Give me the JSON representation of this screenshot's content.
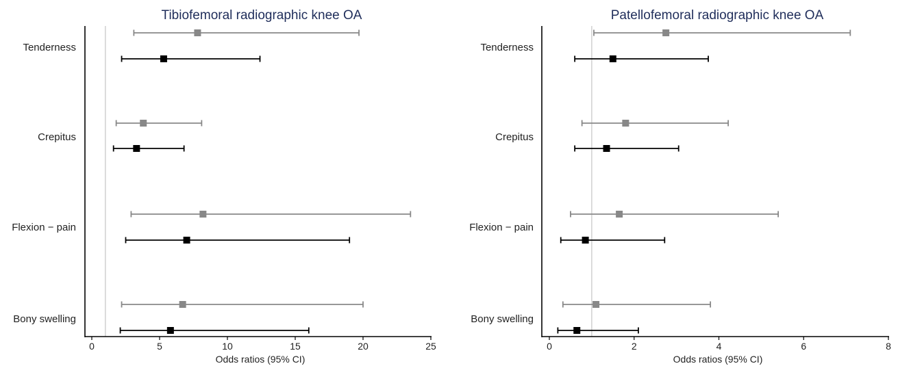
{
  "chart_data": [
    {
      "type": "forest",
      "title": "Tibiofemoral radiographic knee OA",
      "xlabel": "Odds ratios (95% CI)",
      "xlim": [
        0,
        25
      ],
      "xticks": [
        0,
        5,
        10,
        15,
        20,
        25
      ],
      "reference_line": 1,
      "categories": [
        "Tenderness",
        "Crepitus",
        "Flexion − pain",
        "Bony swelling"
      ],
      "series": [
        {
          "color": "#888888",
          "points": [
            {
              "or": 7.8,
              "lower": 3.1,
              "upper": 19.7
            },
            {
              "or": 3.8,
              "lower": 1.8,
              "upper": 8.1
            },
            {
              "or": 8.2,
              "lower": 2.9,
              "upper": 23.5
            },
            {
              "or": 6.7,
              "lower": 2.2,
              "upper": 20.0
            }
          ]
        },
        {
          "color": "#000000",
          "points": [
            {
              "or": 5.3,
              "lower": 2.2,
              "upper": 12.4
            },
            {
              "or": 3.3,
              "lower": 1.6,
              "upper": 6.8
            },
            {
              "or": 7.0,
              "lower": 2.5,
              "upper": 19.0
            },
            {
              "or": 5.8,
              "lower": 2.1,
              "upper": 16.0
            }
          ]
        }
      ]
    },
    {
      "type": "forest",
      "title": "Patellofemoral radiographic knee OA",
      "xlabel": "Odds ratios (95% CI)",
      "xlim": [
        0,
        8
      ],
      "xticks": [
        0,
        2,
        4,
        6,
        8
      ],
      "reference_line": 1,
      "categories": [
        "Tenderness",
        "Crepitus",
        "Flexion − pain",
        "Bony swelling"
      ],
      "series": [
        {
          "color": "#888888",
          "points": [
            {
              "or": 2.75,
              "lower": 1.05,
              "upper": 7.1
            },
            {
              "or": 1.8,
              "lower": 0.77,
              "upper": 4.22
            },
            {
              "or": 1.65,
              "lower": 0.5,
              "upper": 5.4
            },
            {
              "or": 1.1,
              "lower": 0.32,
              "upper": 3.8
            }
          ]
        },
        {
          "color": "#000000",
          "points": [
            {
              "or": 1.5,
              "lower": 0.6,
              "upper": 3.75
            },
            {
              "or": 1.35,
              "lower": 0.6,
              "upper": 3.05
            },
            {
              "or": 0.85,
              "lower": 0.27,
              "upper": 2.72
            },
            {
              "or": 0.65,
              "lower": 0.2,
              "upper": 2.1
            }
          ]
        }
      ]
    }
  ]
}
